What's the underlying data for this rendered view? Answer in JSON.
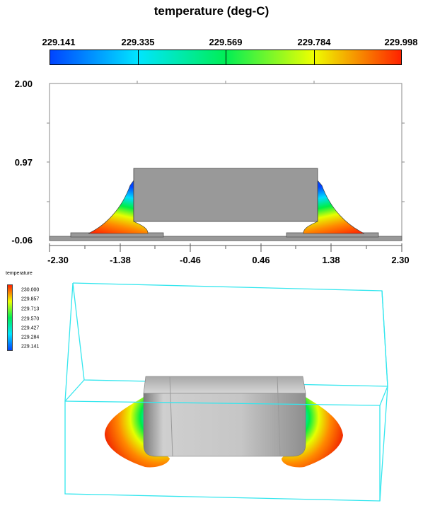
{
  "title": "temperature (deg-C)",
  "colorbar": {
    "labels": [
      "229.141",
      "229.335",
      "229.569",
      "229.784",
      "229.998"
    ],
    "colors": [
      "#0044ff",
      "#00e5ff",
      "#00ee55",
      "#eeff00",
      "#ff2200"
    ]
  },
  "plot2d": {
    "y_ticks": [
      "2.00",
      "0.97",
      "-0.06"
    ],
    "x_ticks": [
      "-2.30",
      "-1.38",
      "-0.46",
      "0.46",
      "1.38",
      "2.30"
    ],
    "xlim": [
      -2.3,
      2.3
    ],
    "ylim": [
      -0.06,
      2.0
    ],
    "frame_color": "#888888",
    "component_color": "#999999"
  },
  "legend": {
    "title": "temperature",
    "labels": [
      "230.000",
      "229.857",
      "229.713",
      "229.570",
      "229.427",
      "229.284",
      "229.141"
    ]
  },
  "view3d": {
    "box_color": "#33e6ee",
    "body_color": "#b4b4b4"
  }
}
